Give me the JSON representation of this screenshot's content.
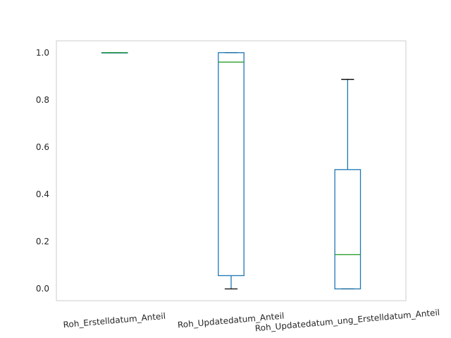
{
  "chart_data": {
    "type": "box",
    "categories": [
      "Roh_Erstelldatum_Anteil",
      "Roh_Updatedatum_Anteil",
      "Roh_Updatedatum_ung_Erstelldatum_Anteil"
    ],
    "boxes": [
      {
        "whisker_low": 1.0,
        "q1": 1.0,
        "median": 1.0,
        "q3": 1.0,
        "whisker_high": 1.0
      },
      {
        "whisker_low": 0.0,
        "q1": 0.056,
        "median": 0.96,
        "q3": 1.0,
        "whisker_high": 1.0
      },
      {
        "whisker_low": 0.0,
        "q1": 0.0,
        "median": 0.145,
        "q3": 0.505,
        "whisker_high": 0.887
      }
    ],
    "ylim": [
      -0.05,
      1.05
    ],
    "yticks": [
      0.0,
      0.2,
      0.4,
      0.6,
      0.8,
      1.0
    ],
    "ytick_labels": [
      "0.0",
      "0.2",
      "0.4",
      "0.6",
      "0.8",
      "1.0"
    ],
    "grid": false,
    "colors": {
      "box": "#1f77b4",
      "median": "#2ca02c",
      "whisker_cap": "#000000",
      "frame": "#cccccc"
    }
  }
}
